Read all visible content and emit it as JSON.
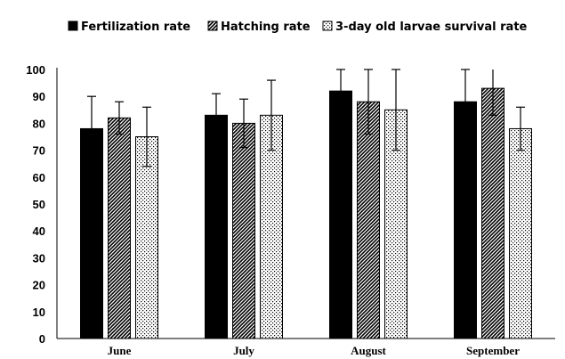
{
  "chart_data": {
    "type": "bar",
    "title": "",
    "xlabel": "",
    "ylabel": "",
    "ylim": [
      0,
      100
    ],
    "yticks": [
      0,
      10,
      20,
      30,
      40,
      50,
      60,
      70,
      80,
      90,
      100
    ],
    "categories": [
      "June",
      "July",
      "August",
      "September"
    ],
    "legend_position": "top",
    "grid": false,
    "series": [
      {
        "name": "Fertilization rate",
        "pattern": "solid",
        "color": "#000000",
        "values": [
          78,
          83,
          92,
          88
        ],
        "error": [
          12,
          8,
          8,
          12
        ]
      },
      {
        "name": "Hatching rate",
        "pattern": "diagonal-hatch",
        "color": "#000000",
        "values": [
          82,
          80,
          88,
          93
        ],
        "error": [
          6,
          9,
          12,
          10
        ]
      },
      {
        "name": "3-day old larvae survival rate",
        "pattern": "dotted",
        "color": "#000000",
        "values": [
          75,
          83,
          85,
          78
        ],
        "error": [
          11,
          13,
          15,
          8
        ]
      }
    ]
  }
}
